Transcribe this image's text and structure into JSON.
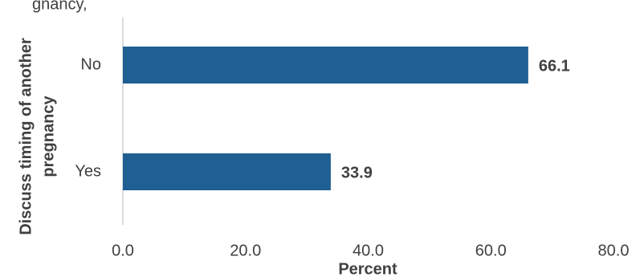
{
  "chart_data": {
    "type": "bar",
    "orientation": "horizontal",
    "title": "gnancy,",
    "categories": [
      "No",
      "Yes"
    ],
    "values": [
      66.1,
      33.9
    ],
    "color": "#1f5f93",
    "xlim": [
      0,
      80
    ],
    "xticks": [
      {
        "value": 0,
        "label": "0.0"
      },
      {
        "value": 20,
        "label": "20.0"
      },
      {
        "value": 40,
        "label": "40.0"
      },
      {
        "value": 60,
        "label": "60.0"
      },
      {
        "value": 80,
        "label": "80.0"
      }
    ],
    "xlabel": "Percent",
    "ylabel": [
      "Discuss timing of another",
      "pregnancy"
    ],
    "grid": false
  }
}
